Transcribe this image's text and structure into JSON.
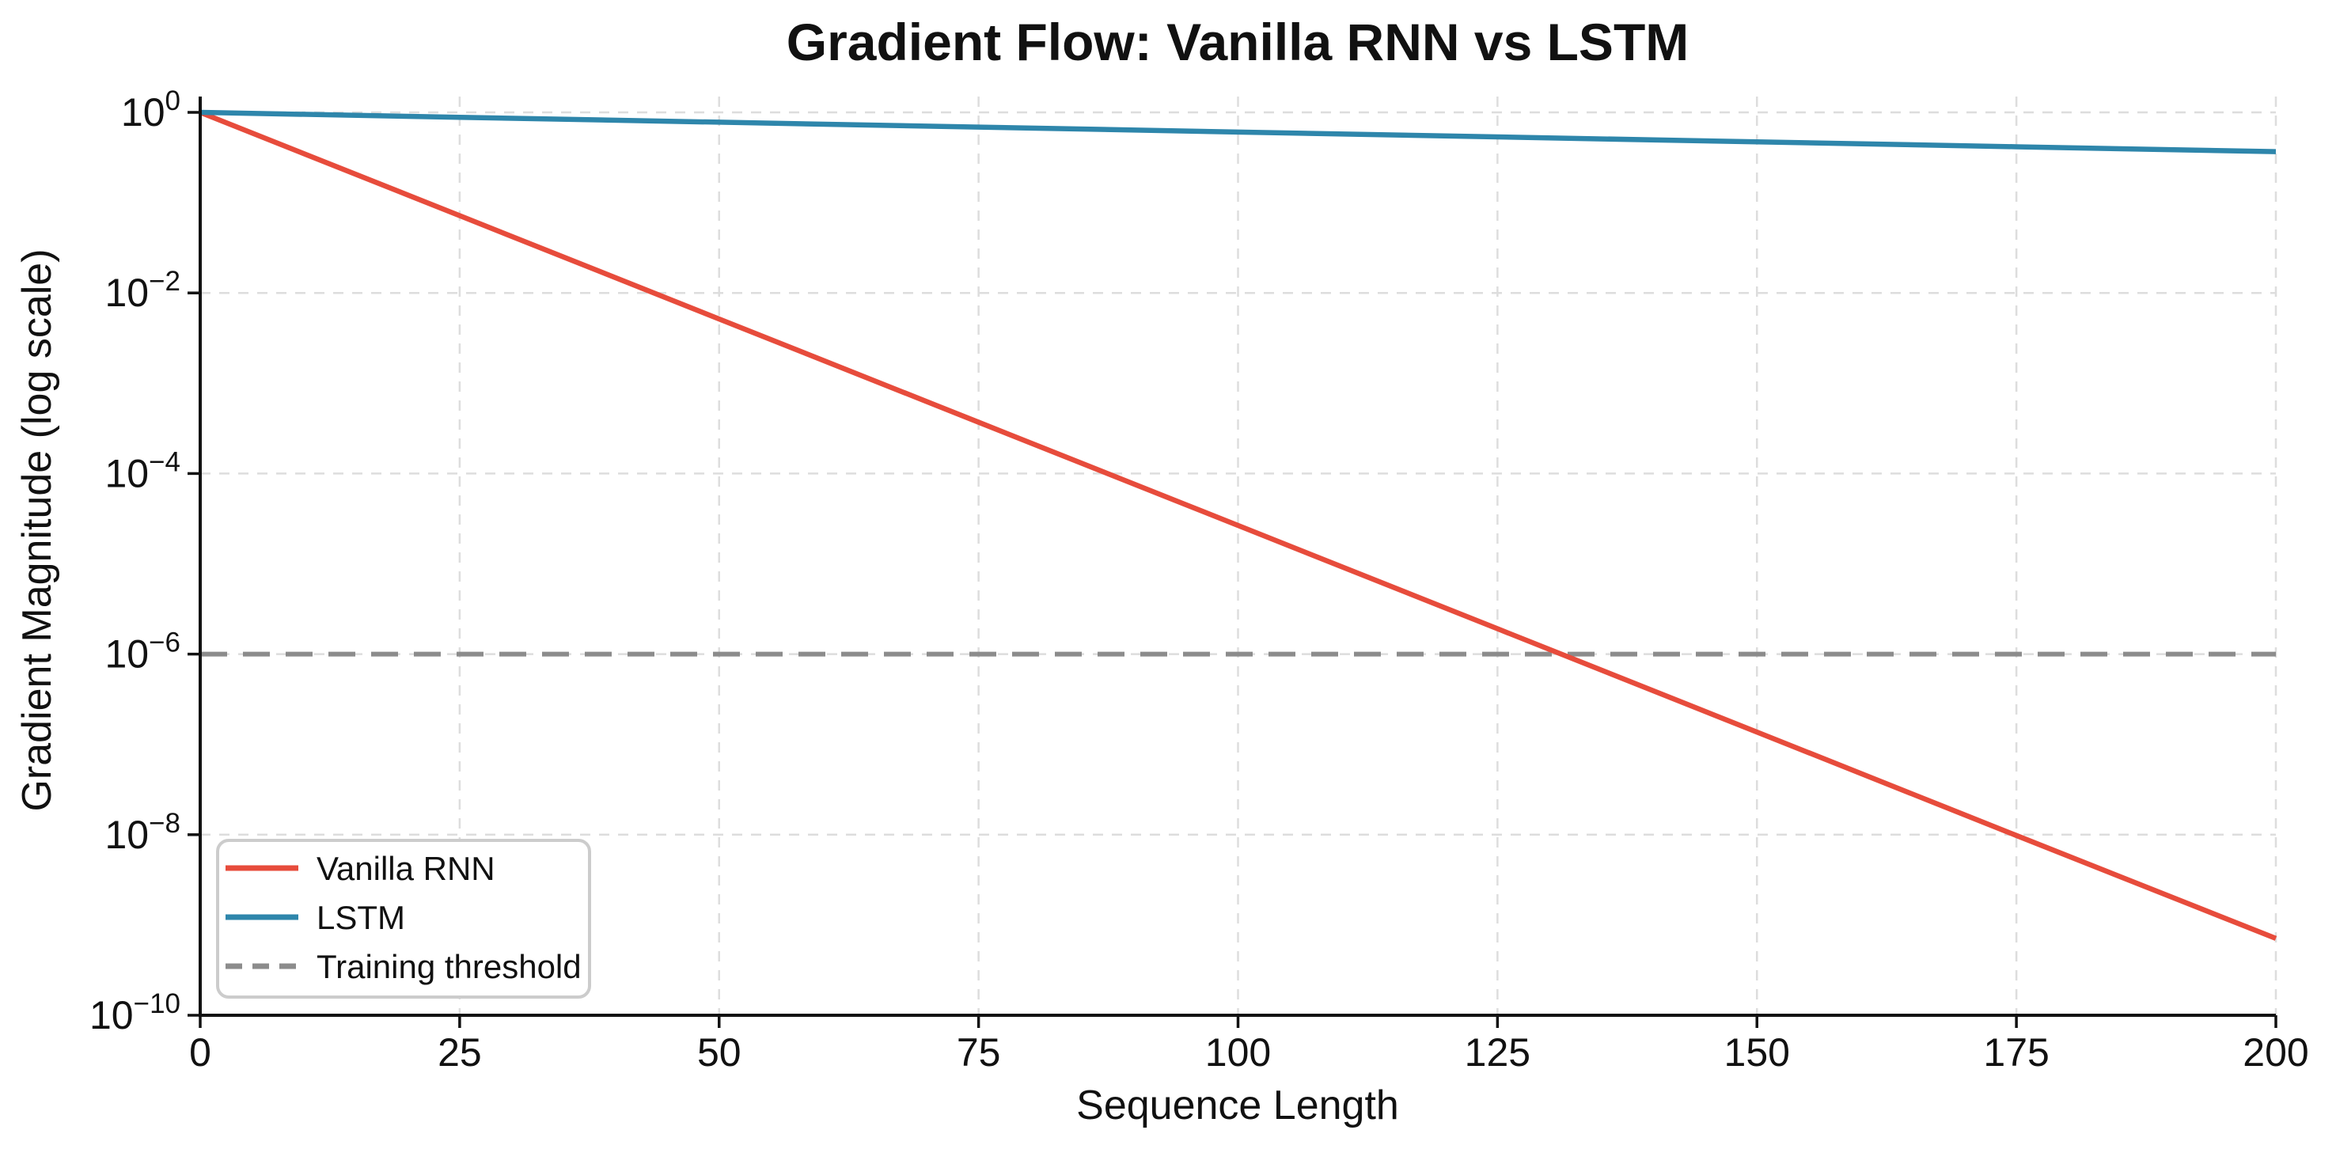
{
  "figure": {
    "background": "#ffffff",
    "text_color": "#111111",
    "grid_color": "#dddddd",
    "spine_color": "#111111",
    "legend_border_color": "#cccccc"
  },
  "chart_data": {
    "type": "line",
    "title": "Gradient Flow: Vanilla RNN vs LSTM",
    "xlabel": "Sequence Length",
    "ylabel": "Gradient Magnitude (log scale)",
    "x_axis": {
      "min": 0,
      "max": 200,
      "ticks": [
        0,
        25,
        50,
        75,
        100,
        125,
        150,
        175,
        200
      ]
    },
    "y_axis": {
      "scale": "log",
      "min_exp": -10,
      "max_exp": 0,
      "tick_exponents": [
        0,
        -2,
        -4,
        -6,
        -8,
        -10
      ]
    },
    "grid": {
      "show": true,
      "style": "dashed"
    },
    "x_samples": [
      0,
      25,
      50,
      75,
      100,
      125,
      150,
      175,
      200
    ],
    "series": [
      {
        "name": "Vanilla RNN",
        "color": "#E74C3C",
        "line_style": "solid",
        "decay_per_step": 0.9,
        "values": [
          1.0,
          0.0718,
          0.00515,
          0.00037,
          2.66e-05,
          1.91e-06,
          1.37e-07,
          9.8e-09,
          7.1e-10
        ]
      },
      {
        "name": "LSTM",
        "color": "#2E86AB",
        "line_style": "solid",
        "decay_per_step": 0.995,
        "values": [
          1.0,
          0.8822,
          0.7783,
          0.6867,
          0.6058,
          0.5345,
          0.4715,
          0.416,
          0.367
        ]
      }
    ],
    "threshold_line": {
      "label": "Training threshold",
      "value": 1e-06,
      "color": "#8C8C8C",
      "line_style": "dashed"
    },
    "legend": {
      "position": "lower left",
      "entries": [
        "Vanilla RNN",
        "LSTM",
        "Training threshold"
      ]
    }
  }
}
